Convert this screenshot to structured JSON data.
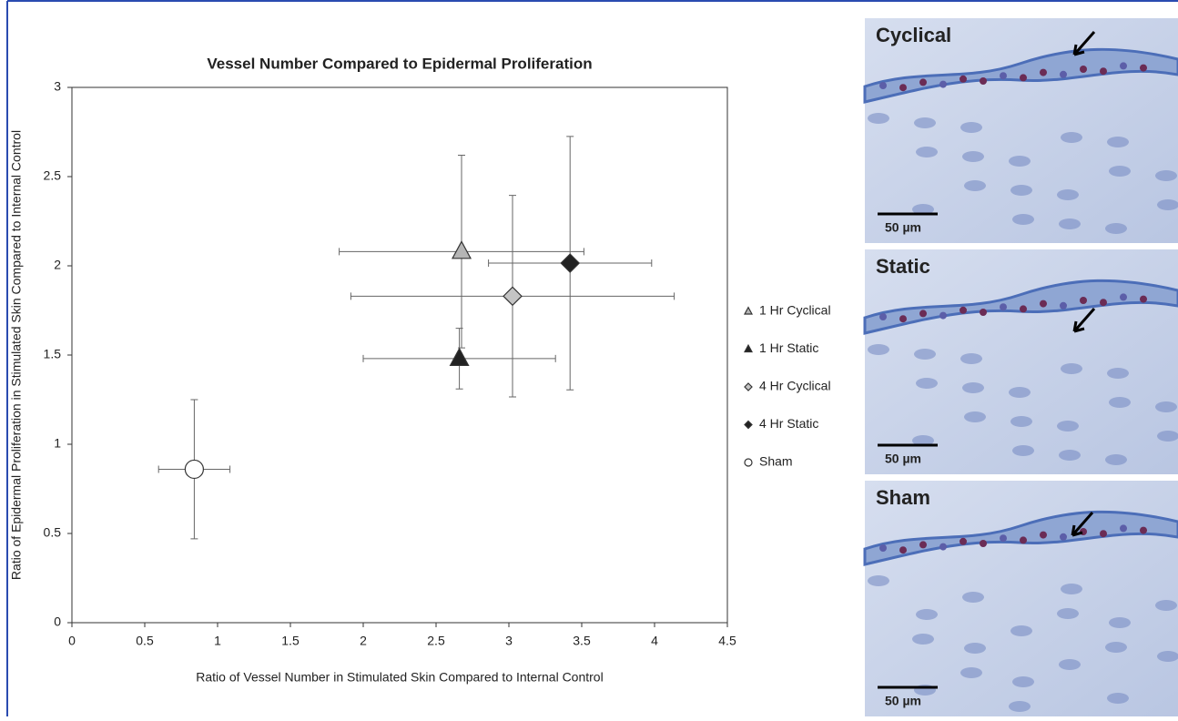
{
  "chart_data": {
    "type": "scatter",
    "title": "Vessel Number Compared to Epidermal Proliferation",
    "x_label": "Ratio of Vessel Number in Stimulated Skin Compared to Internal Control",
    "y_label": "Ratio of Epidermal Proliferation in Stimulated Skin Compared to Internal Control",
    "xlim": [
      0,
      4.5
    ],
    "xticks": [
      0,
      0.5,
      1,
      1.5,
      2,
      2.5,
      3,
      3.5,
      4,
      4.5
    ],
    "ylim": [
      0,
      3
    ],
    "yticks": [
      0,
      0.5,
      1,
      1.5,
      2,
      2.5,
      3
    ],
    "grid": false,
    "legend": "right",
    "series": [
      {
        "name": "1 Hr Cyclical",
        "color": "#b5b5b5",
        "marker": "triangle",
        "x": [
          2.675
        ],
        "values": [
          2.08
        ],
        "xerr": [
          0.84
        ],
        "yerr": [
          0.54
        ]
      },
      {
        "name": "1 Hr Static",
        "color": "#222222",
        "marker": "triangle",
        "x": [
          2.66
        ],
        "values": [
          1.48
        ],
        "xerr": [
          0.66
        ],
        "yerr": [
          0.17
        ]
      },
      {
        "name": "4 Hr Cyclical",
        "color": "#c4c4c4",
        "marker": "diamond",
        "x": [
          3.025
        ],
        "values": [
          1.83
        ],
        "xerr": [
          1.11
        ],
        "yerr": [
          0.565
        ]
      },
      {
        "name": "4 Hr Static",
        "color": "#222222",
        "marker": "diamond",
        "x": [
          3.42
        ],
        "values": [
          2.015
        ],
        "xerr": [
          0.56
        ],
        "yerr": [
          0.71
        ]
      },
      {
        "name": "Sham",
        "color": "#ffffff",
        "marker": "circle",
        "x": [
          0.84
        ],
        "values": [
          0.86
        ],
        "xerr": [
          0.245
        ],
        "yerr": [
          0.39
        ]
      }
    ]
  },
  "panels": [
    {
      "label": "Cyclical",
      "scale": "50 µm"
    },
    {
      "label": "Static",
      "scale": "50 µm"
    },
    {
      "label": "Sham",
      "scale": "50 µm"
    }
  ]
}
